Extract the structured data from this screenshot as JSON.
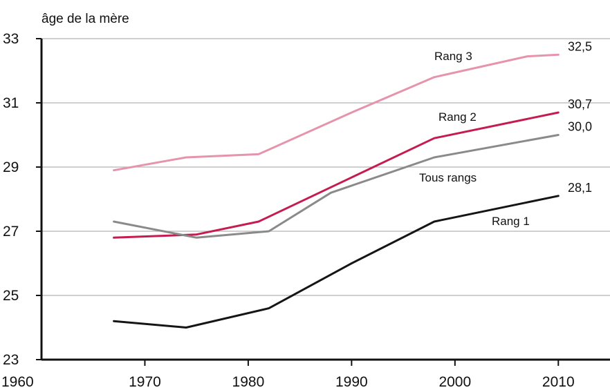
{
  "chart_data": {
    "type": "line",
    "title": "",
    "xlabel": "",
    "ylabel": "âge de la mère",
    "xlim": [
      1960,
      2015
    ],
    "ylim": [
      23,
      33
    ],
    "x_ticks": [
      1960,
      1970,
      1980,
      1990,
      2000,
      2010
    ],
    "y_ticks": [
      23,
      25,
      27,
      29,
      31,
      33
    ],
    "grid": "horizontal",
    "series": [
      {
        "name": "Rang 3",
        "color": "#e693ac",
        "end_label": "32,5",
        "x": [
          1967,
          1974,
          1981,
          1990,
          1998,
          2007,
          2010
        ],
        "y": [
          28.9,
          29.3,
          29.4,
          30.7,
          31.8,
          32.45,
          32.5
        ]
      },
      {
        "name": "Rang 2",
        "color": "#c41c50",
        "end_label": "30,7",
        "x": [
          1967,
          1975,
          1981,
          1998,
          2010
        ],
        "y": [
          26.8,
          26.9,
          27.3,
          29.9,
          30.7
        ]
      },
      {
        "name": "Tous rangs",
        "color": "#8a8a8a",
        "end_label": "30,0",
        "x": [
          1967,
          1975,
          1982,
          1988,
          1998,
          2010
        ],
        "y": [
          27.3,
          26.8,
          27.0,
          28.2,
          29.3,
          30.0
        ]
      },
      {
        "name": "Rang 1",
        "color": "#151515",
        "end_label": "28,1",
        "x": [
          1967,
          1974,
          1982,
          1990,
          1998,
          2010
        ],
        "y": [
          24.2,
          24.0,
          24.6,
          26.0,
          27.3,
          28.1
        ]
      }
    ]
  }
}
